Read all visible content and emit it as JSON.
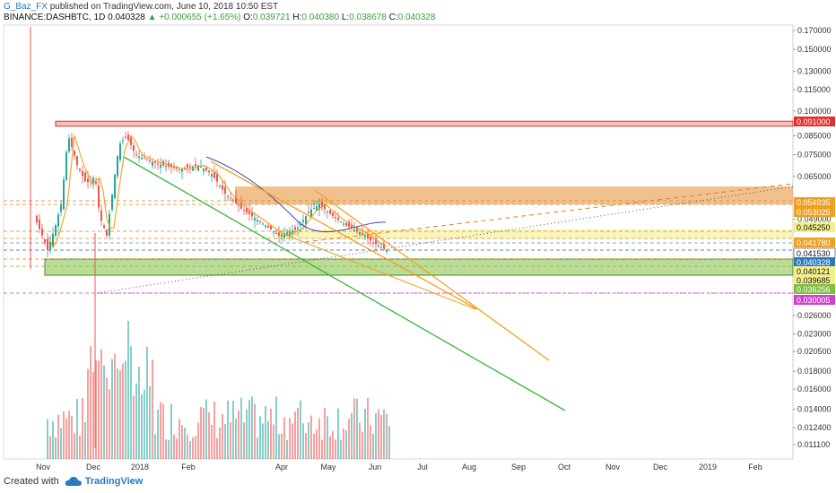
{
  "header": {
    "author": "G_Baz_FX",
    "published": "published on TradingView.com, June 10, 2018 10:50 EST",
    "symbol": "BINANCE:DASHBTC, 1D",
    "last": "0.040328",
    "change": "▲ +0.000655 (+1.65%)",
    "o_label": "O:",
    "o_val": "0.039721",
    "h_label": "H:",
    "h_val": "0.040380",
    "l_label": "L:",
    "l_val": "0.038678",
    "c_label": "C:",
    "c_val": "0.040328"
  },
  "footer": {
    "created_with": "Created with",
    "brand": "TradingView"
  },
  "colors": {
    "candle_up": "#26a69a",
    "candle_down": "#ef5350",
    "resistance_zone": "#e8a050",
    "support_zone": "#7fbf3f",
    "top_zone": "#e03030",
    "yellow_zone": "#f5f08c",
    "green_line": "#3ab63a",
    "orange_line": "#f0a020",
    "ma_line": "#f0a020"
  },
  "chart_data": {
    "type": "candlestick",
    "x_ticks": [
      "Nov",
      "Dec",
      "2018",
      "Feb",
      "Apr",
      "May",
      "Jun",
      "Jul",
      "Aug",
      "Sep",
      "Oct",
      "Nov",
      "Dec",
      "2019",
      "Feb"
    ],
    "y_scale": "log",
    "y_ticks": [
      "0.170000",
      "0.150000",
      "0.130000",
      "0.115000",
      "0.100000",
      "0.085000",
      "0.075000",
      "0.065000",
      "0.049000",
      "0.026000",
      "0.023000",
      "0.020500",
      "0.018000",
      "0.016000",
      "0.014000",
      "0.012400",
      "0.011100"
    ],
    "price_labels": [
      {
        "value": "0.091000",
        "bg": "#e03030",
        "fg": "#ffffff"
      },
      {
        "value": "0.054935",
        "bg": "#f0a020",
        "fg": "#ffffff"
      },
      {
        "value": "0.053025",
        "bg": "#f0a020",
        "fg": "#ffffff"
      },
      {
        "value": "0.045250",
        "bg": "#f5f08c",
        "fg": "#111111"
      },
      {
        "value": "0.041780",
        "bg": "#f0a020",
        "fg": "#ffffff"
      },
      {
        "value": "0.041530",
        "bg": "#ffffff",
        "fg": "#111111"
      },
      {
        "value": "0.040328",
        "bg": "#2a7ac0",
        "fg": "#ffffff"
      },
      {
        "value": "0.040121",
        "bg": "#f5f08c",
        "fg": "#111111"
      },
      {
        "value": "0.039685",
        "bg": "#f5f08c",
        "fg": "#111111"
      },
      {
        "value": "0.036256",
        "bg": "#7fbf3f",
        "fg": "#ffffff"
      },
      {
        "value": "0.030005",
        "bg": "#d040d0",
        "fg": "#ffffff"
      }
    ],
    "last_price": 0.040328
  }
}
